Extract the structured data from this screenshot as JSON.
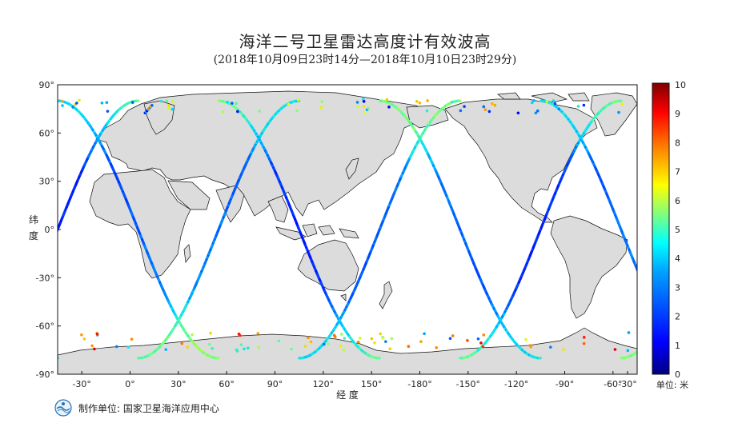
{
  "header": {
    "title": "海洋二号卫星雷达高度计有效波高",
    "subtitle": "(2018年10月09日23时14分—2018年10月10日23时29分)"
  },
  "axes": {
    "ylabel_chars": [
      "纬",
      "度"
    ],
    "xlabel": "经  度",
    "lat_ticks": [
      "90°",
      "60°",
      "30°",
      "0°",
      "-30°",
      "-60°",
      "-90°"
    ],
    "lon_ticks": [
      "-30°",
      "0°",
      "30°",
      "60°",
      "90°",
      "120°",
      "150°",
      "-180°",
      "-150°",
      "-120°",
      "-90°",
      "-60°",
      "-30°"
    ]
  },
  "colorbar": {
    "ticks": [
      "10",
      "9",
      "8",
      "7",
      "6",
      "5",
      "4",
      "3",
      "2",
      "1",
      "0"
    ],
    "unit_label": "单位: 米",
    "min": 0,
    "max": 10,
    "colors": [
      "#00007f",
      "#0000ff",
      "#007fff",
      "#00ffff",
      "#7fff7f",
      "#ffff00",
      "#ff7f00",
      "#ff0000",
      "#7f0000"
    ]
  },
  "footer": {
    "label": "制作单位: 国家卫星海洋应用中心"
  },
  "map": {
    "land_color": "#dcdcdc",
    "ocean_color": "#ffffff",
    "lon_range": [
      -45,
      315
    ],
    "lat_range": [
      -90,
      90
    ]
  }
}
